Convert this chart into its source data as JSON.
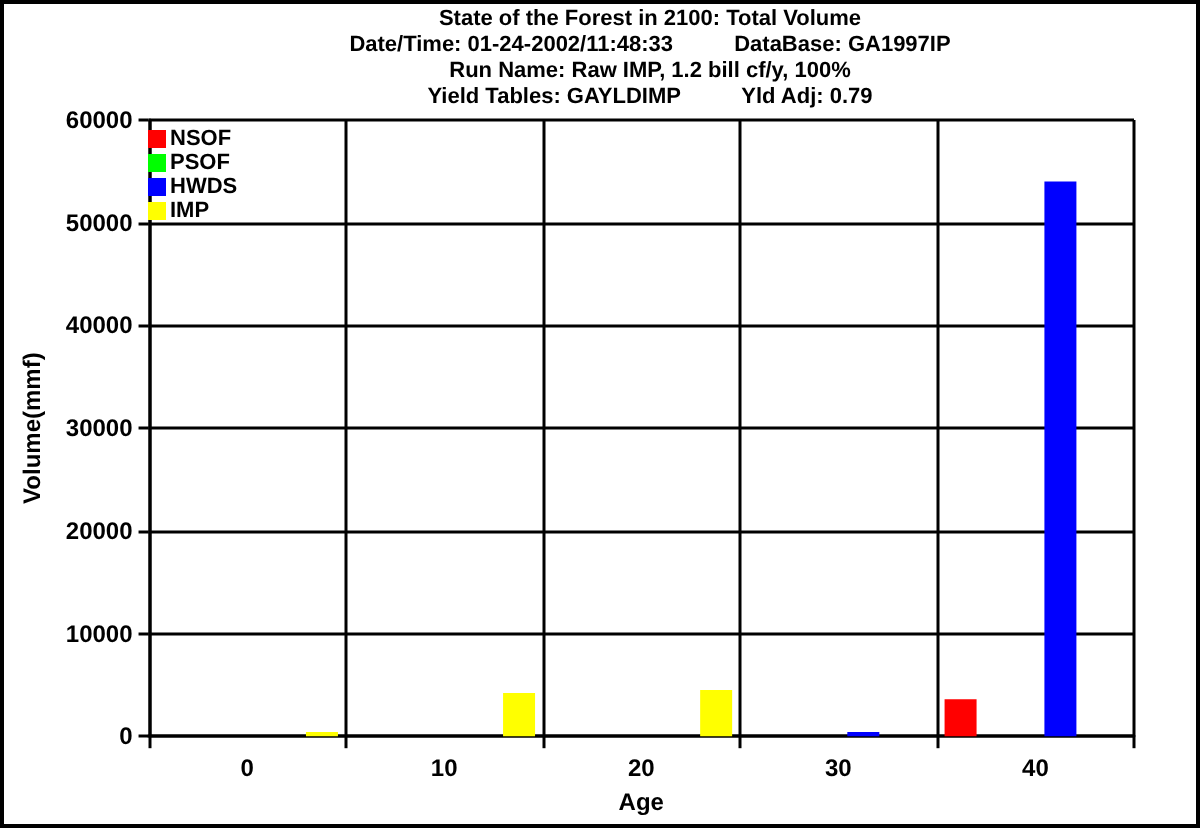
{
  "chart_data": {
    "type": "bar",
    "title": "State of the Forest in 2100: Total Volume",
    "subtitle": "Date/Time: 01-24-2002/11:48:33          DataBase: GA1997IP\nRun Name: Raw IMP, 1.2 bill cf/y, 100%\nYield Tables: GAYLDIMP          Yld Adj: 0.79",
    "xlabel": "Age",
    "ylabel": "Volume(mmf)",
    "categories": [
      "0",
      "10",
      "20",
      "30",
      "40"
    ],
    "series": [
      {
        "name": "NSOF",
        "color": "#ff0000",
        "values": [
          0,
          0,
          0,
          0,
          3600
        ]
      },
      {
        "name": "PSOF",
        "color": "#00ff00",
        "values": [
          0,
          0,
          0,
          0,
          0
        ]
      },
      {
        "name": "HWDS",
        "color": "#0000ff",
        "values": [
          0,
          0,
          0,
          400,
          54000
        ]
      },
      {
        "name": "IMP",
        "color": "#ffff00",
        "values": [
          400,
          4200,
          4500,
          0,
          0
        ]
      }
    ],
    "ylim": [
      0,
      60000
    ],
    "yticks": [
      0,
      10000,
      20000,
      30000,
      40000,
      50000,
      60000
    ],
    "grid": true,
    "legend": "top left"
  }
}
